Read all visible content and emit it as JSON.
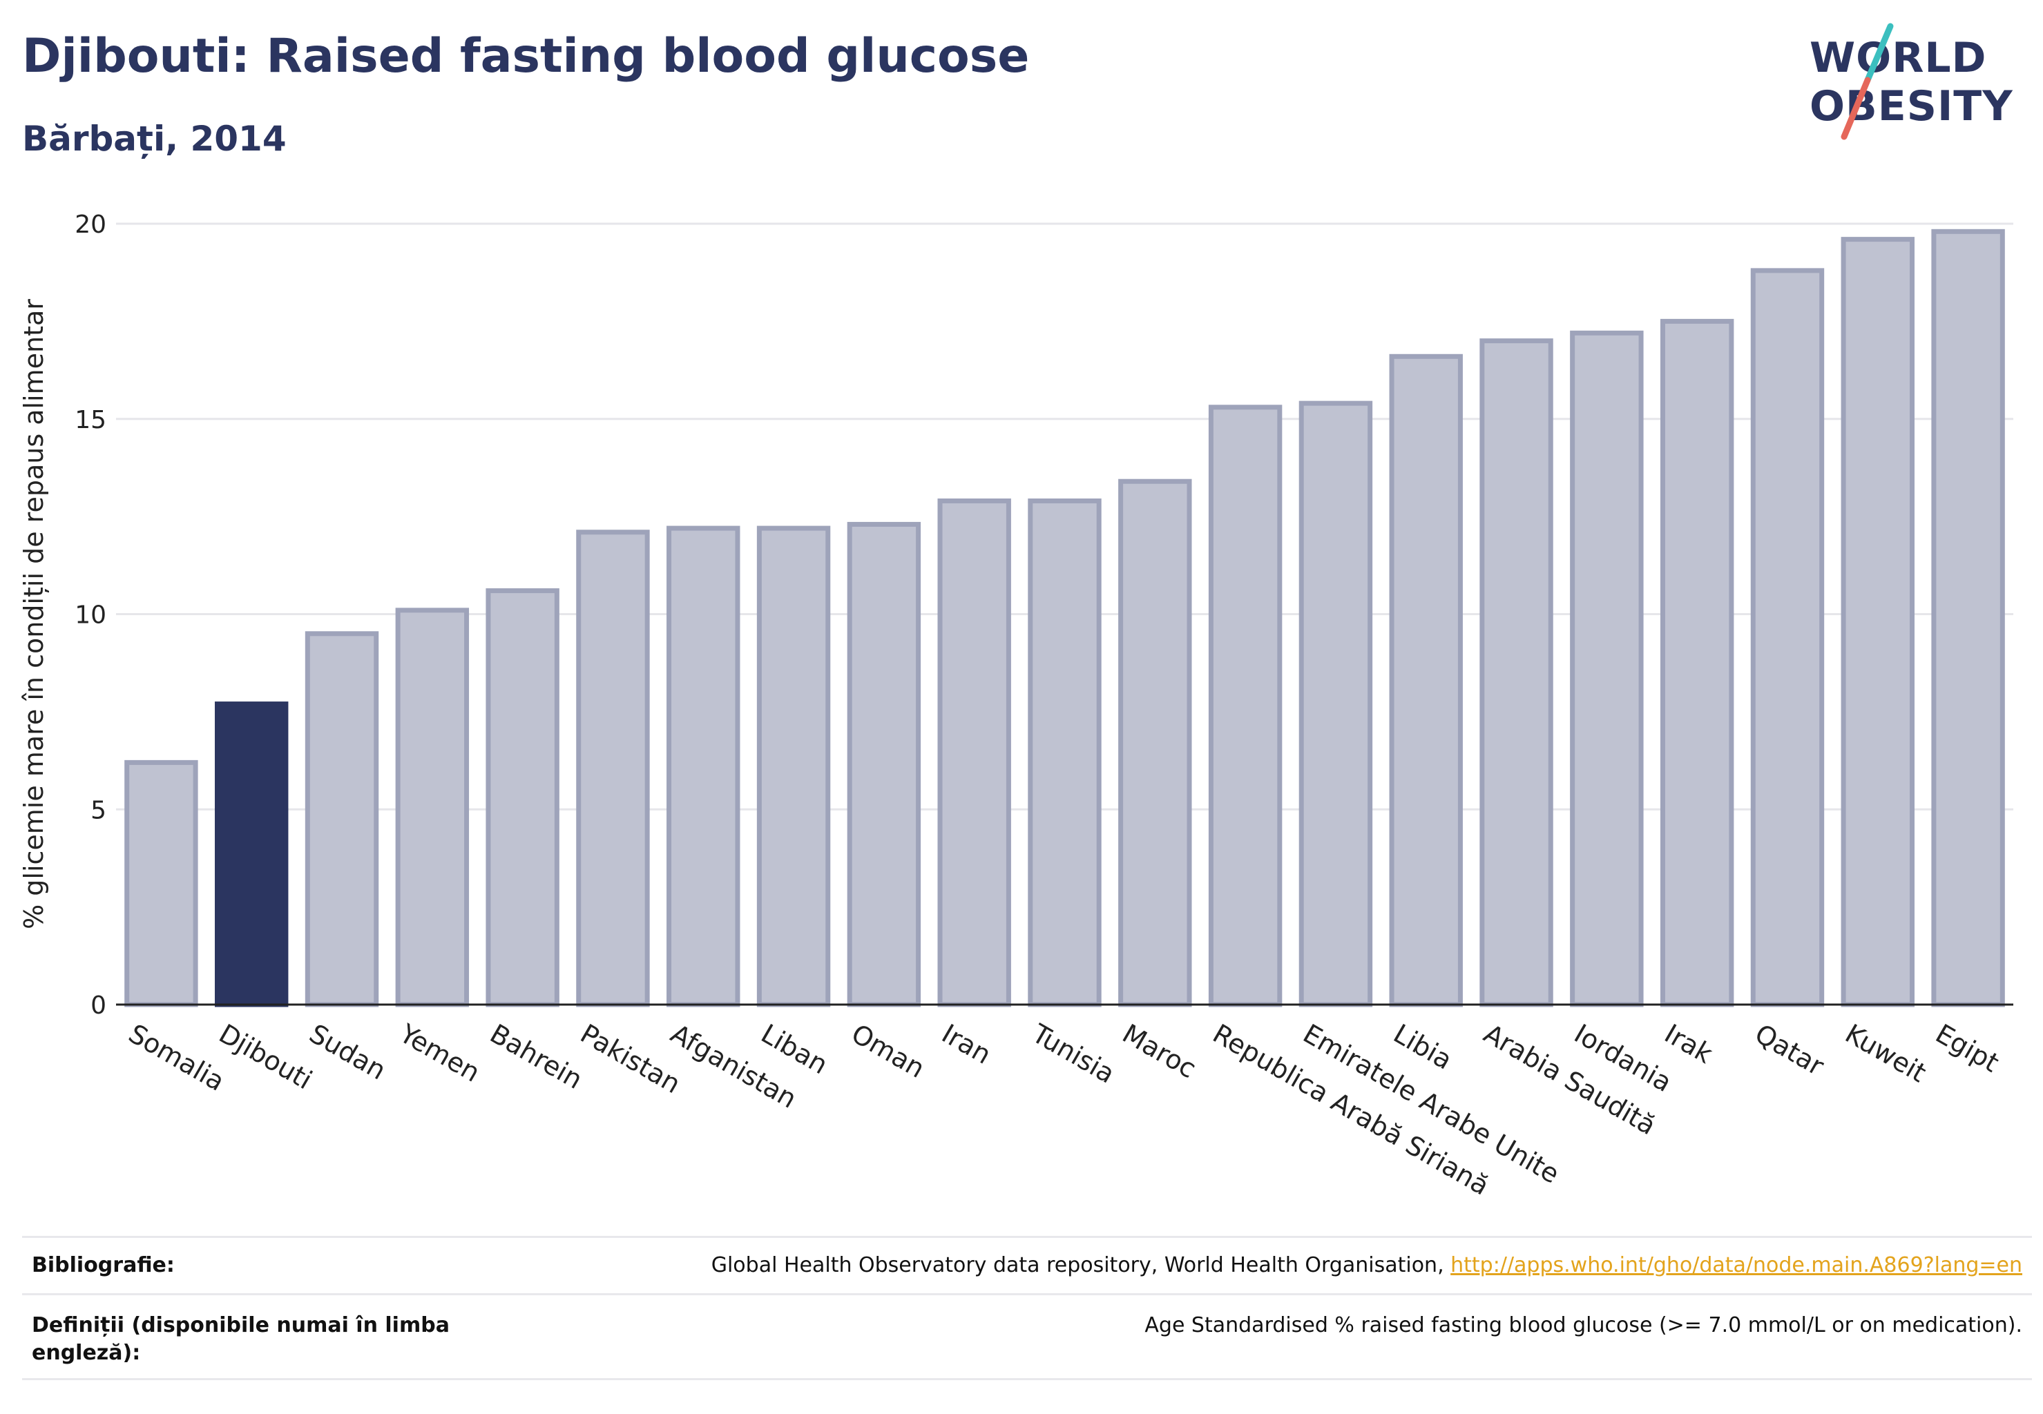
{
  "header": {
    "title": "Djibouti: Raised fasting blood glucose",
    "subtitle": "Bărbați, 2014"
  },
  "logo": {
    "line1": "WORLD",
    "line2": "OBESITY",
    "accent_colors": [
      "#3bbfbf",
      "#e5675a"
    ]
  },
  "chart_data": {
    "type": "bar",
    "title": "Djibouti: Raised fasting blood glucose",
    "subtitle": "Bărbați, 2014",
    "xlabel": "",
    "ylabel": "% glicemie mare în condiții de repaus alimentar",
    "ylim": [
      0,
      20
    ],
    "yticks": [
      0,
      5,
      10,
      15,
      20
    ],
    "grid": true,
    "highlight": "Djibouti",
    "colors": {
      "highlight": "#2b3560",
      "default": "#bfc2d1",
      "default_border": "#9ea3ba",
      "grid": "#e6e6ea"
    },
    "categories": [
      "Somalia",
      "Djibouti",
      "Sudan",
      "Yemen",
      "Bahrein",
      "Pakistan",
      "Afganistan",
      "Liban",
      "Oman",
      "Iran",
      "Tunisia",
      "Maroc",
      "Republica Arabă Siriană",
      "Emiratele Arabe Unite",
      "Libia",
      "Arabia Saudită",
      "Iordania",
      "Irak",
      "Qatar",
      "Kuweit",
      "Egipt"
    ],
    "values": [
      6.2,
      7.7,
      9.5,
      10.1,
      10.6,
      12.1,
      12.2,
      12.2,
      12.3,
      12.9,
      12.9,
      13.4,
      15.3,
      15.4,
      16.6,
      17.0,
      17.2,
      17.5,
      18.8,
      19.6,
      19.8
    ]
  },
  "footer": {
    "bibliography_label": "Bibliografie:",
    "bibliography_text": "Global Health Observatory data repository, World Health Organisation, ",
    "bibliography_link": "http://apps.who.int/gho/data/node.main.A869?lang=en",
    "definitions_label_line1": "Definiții (disponibile numai în limba",
    "definitions_label_line2": "engleză):",
    "definitions_text": "Age Standardised % raised fasting blood glucose (>= 7.0 mmol/L or on medication)."
  }
}
